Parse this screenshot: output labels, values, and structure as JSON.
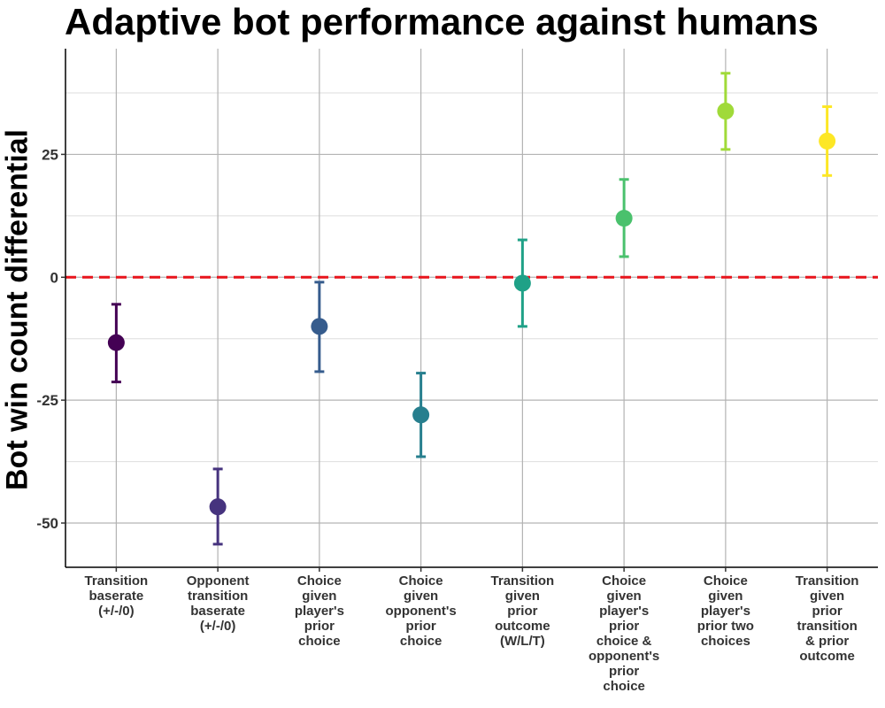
{
  "chart_data": {
    "type": "scatter",
    "title": "Adaptive bot performance against humans",
    "xlabel": "",
    "ylabel": "Bot win count differential",
    "ylim": [
      -59,
      46.5
    ],
    "yticks": [
      -50,
      -25,
      0,
      25
    ],
    "grid": true,
    "reference_line": {
      "y": 0,
      "color": "#e8141c",
      "style": "dashed"
    },
    "categories": [
      [
        "Transition",
        "baserate",
        "(+/-/0)"
      ],
      [
        "Opponent",
        "transition",
        "baserate",
        "(+/-/0)"
      ],
      [
        "Choice",
        "given",
        "player's",
        "prior",
        "choice"
      ],
      [
        "Choice",
        "given",
        "opponent's",
        "prior",
        "choice"
      ],
      [
        "Transition",
        "given",
        "prior",
        "outcome",
        "(W/L/T)"
      ],
      [
        "Choice",
        "given",
        "player's",
        "prior",
        "choice &",
        "opponent's",
        "prior",
        "choice"
      ],
      [
        "Choice",
        "given",
        "player's",
        "prior two",
        "choices"
      ],
      [
        "Transition",
        "given",
        "prior",
        "transition",
        "& prior",
        "outcome"
      ]
    ],
    "points": [
      {
        "value": -13.3,
        "lower": -21.3,
        "upper": -5.5,
        "color": "#440154"
      },
      {
        "value": -46.7,
        "lower": -54.3,
        "upper": -39.0,
        "color": "#46337e"
      },
      {
        "value": -10.0,
        "lower": -19.2,
        "upper": -1.0,
        "color": "#365c8d"
      },
      {
        "value": -28.0,
        "lower": -36.5,
        "upper": -19.5,
        "color": "#277f8e"
      },
      {
        "value": -1.2,
        "lower": -10.0,
        "upper": 7.6,
        "color": "#1fa187"
      },
      {
        "value": 12.0,
        "lower": 4.2,
        "upper": 19.9,
        "color": "#4ac16d"
      },
      {
        "value": 33.8,
        "lower": 26.0,
        "upper": 41.5,
        "color": "#a0da39"
      },
      {
        "value": 27.7,
        "lower": 20.7,
        "upper": 34.7,
        "color": "#fde725"
      }
    ]
  }
}
